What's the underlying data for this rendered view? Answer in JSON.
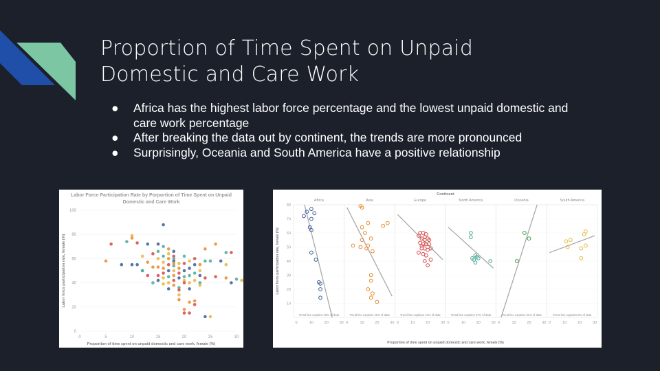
{
  "slide": {
    "title_line1": "Proportion of Time Spent on Unpaid",
    "title_line2": "Domestic and Care Work",
    "bullets": [
      "Africa has the highest labor force percentage and the lowest unpaid domestic and care work percentage",
      "After breaking the data out by continent, the trends are more pronounced",
      "Surprisingly, Oceania and South America have a positive relationship"
    ],
    "bullet_glyph": "●",
    "colors": {
      "background": "#1b202b",
      "accent_blue": "#1f4fa8",
      "accent_green": "#7cc6a4"
    }
  },
  "chart_data": [
    {
      "type": "scatter",
      "title": "Labor Force Participation Rate by Porportion of Time Spent on Unpaid Domestic and Care Work",
      "title_line1": "Labor Force Participation Rate by Porportion of Time Spent on Unpaid",
      "title_line2": "Domestic and Care Work",
      "xlabel": "Proportion of time spent on unpaid domestic and care work, female (%)",
      "ylabel": "Labor force participation rate, female (%)",
      "xlim": [
        0,
        30
      ],
      "ylim": [
        0,
        100
      ],
      "x_ticks": [
        "0",
        "5",
        "10",
        "15",
        "20",
        "25",
        "30"
      ],
      "y_ticks": [
        "0",
        "20",
        "40",
        "60",
        "80",
        "100"
      ],
      "colors": [
        "#e8892c",
        "#d94545",
        "#3c5a9a",
        "#4aa89a",
        "#e8b53a"
      ],
      "points": [
        [
          5,
          58
        ],
        [
          6,
          72
        ],
        [
          8,
          55
        ],
        [
          9,
          74
        ],
        [
          10,
          79
        ],
        [
          10,
          77
        ],
        [
          11,
          73
        ],
        [
          10,
          55
        ],
        [
          12,
          50
        ],
        [
          12,
          62
        ],
        [
          13,
          57
        ],
        [
          14,
          64
        ],
        [
          13,
          72
        ],
        [
          15,
          66
        ],
        [
          15,
          60
        ],
        [
          15,
          53
        ],
        [
          15,
          46
        ],
        [
          15,
          42
        ],
        [
          16,
          62
        ],
        [
          16,
          57
        ],
        [
          16,
          52
        ],
        [
          16,
          48
        ],
        [
          16,
          88
        ],
        [
          16,
          70
        ],
        [
          17,
          64
        ],
        [
          17,
          60
        ],
        [
          17,
          55
        ],
        [
          17,
          50
        ],
        [
          17,
          45
        ],
        [
          17,
          40
        ],
        [
          17,
          68
        ],
        [
          18,
          62
        ],
        [
          18,
          58
        ],
        [
          18,
          54
        ],
        [
          18,
          50
        ],
        [
          18,
          46
        ],
        [
          18,
          42
        ],
        [
          18,
          66
        ],
        [
          18,
          60
        ],
        [
          19,
          56
        ],
        [
          19,
          52
        ],
        [
          19,
          48
        ],
        [
          19,
          44
        ],
        [
          19,
          36
        ],
        [
          19,
          30
        ],
        [
          19,
          26
        ],
        [
          20,
          56
        ],
        [
          20,
          50
        ],
        [
          20,
          45
        ],
        [
          20,
          42
        ],
        [
          20,
          18
        ],
        [
          20,
          15
        ],
        [
          21,
          52
        ],
        [
          21,
          46
        ],
        [
          21,
          40
        ],
        [
          21,
          24
        ],
        [
          21,
          15
        ],
        [
          22,
          55
        ],
        [
          22,
          48
        ],
        [
          22,
          42
        ],
        [
          22,
          25
        ],
        [
          22,
          22
        ],
        [
          23,
          46
        ],
        [
          23,
          40
        ],
        [
          23,
          50
        ],
        [
          24,
          68
        ],
        [
          24,
          44
        ],
        [
          24,
          12
        ],
        [
          25,
          58
        ],
        [
          25,
          12
        ],
        [
          26,
          72
        ],
        [
          26,
          45
        ],
        [
          27,
          58
        ],
        [
          28,
          65
        ],
        [
          28,
          55
        ],
        [
          28,
          44
        ],
        [
          29,
          65
        ],
        [
          29,
          40
        ],
        [
          30,
          43
        ],
        [
          31,
          42
        ],
        [
          14,
          53
        ],
        [
          13,
          46
        ],
        [
          15,
          72
        ],
        [
          12,
          50
        ],
        [
          16,
          39
        ],
        [
          18,
          38
        ],
        [
          19,
          34
        ],
        [
          17,
          35
        ],
        [
          20,
          62
        ],
        [
          21,
          58
        ],
        [
          23,
          55
        ],
        [
          22,
          60
        ],
        [
          11,
          55
        ],
        [
          14,
          40
        ],
        [
          16,
          44
        ],
        [
          18,
          56
        ],
        [
          20,
          40
        ],
        [
          21,
          35
        ],
        [
          24,
          58
        ],
        [
          23,
          38
        ]
      ]
    },
    {
      "type": "scatter",
      "title": "Continent",
      "xlabel": "Proportion of time spent on unpaid domestic and care work, female (%)",
      "ylabel": "Labor force participation rate, female (%)",
      "xlim": [
        0,
        30
      ],
      "ylim": [
        0,
        80
      ],
      "x_ticks": [
        "0",
        "10",
        "20",
        "30"
      ],
      "y_ticks": [
        "10",
        "20",
        "30",
        "40",
        "50",
        "60",
        "70",
        "80"
      ],
      "panels": [
        {
          "name": "Africa",
          "color": "#3c5a9a",
          "trend": "Trend line explains 49% of data",
          "points": [
            [
              5,
              72
            ],
            [
              7,
              75
            ],
            [
              10,
              77
            ],
            [
              12,
              74
            ],
            [
              10,
              70
            ],
            [
              9,
              64
            ],
            [
              10,
              62
            ],
            [
              10,
              46
            ],
            [
              13,
              41
            ],
            [
              15,
              25
            ],
            [
              16,
              24
            ],
            [
              16,
              20
            ],
            [
              16,
              14
            ]
          ],
          "line": [
            [
              5,
              82
            ],
            [
              25,
              -5
            ]
          ]
        },
        {
          "name": "Asia",
          "color": "#e8892c",
          "trend": "Trend line explains 22% of data",
          "points": [
            [
              9,
              79
            ],
            [
              10,
              78
            ],
            [
              4,
              51
            ],
            [
              9,
              50
            ],
            [
              10,
              64
            ],
            [
              14,
              67
            ],
            [
              12,
              60
            ],
            [
              10,
              55
            ],
            [
              14,
              51
            ],
            [
              16,
              56
            ],
            [
              17,
              47
            ],
            [
              13,
              49
            ],
            [
              24,
              65
            ],
            [
              27,
              67
            ],
            [
              16,
              30
            ],
            [
              16,
              26
            ],
            [
              14,
              20
            ],
            [
              17,
              17
            ],
            [
              16,
              14
            ],
            [
              20,
              11
            ]
          ],
          "line": [
            [
              0,
              78
            ],
            [
              30,
              15
            ]
          ]
        },
        {
          "name": "Europe",
          "color": "#d94545",
          "trend": "Trend line explains 13% of data",
          "points": [
            [
              14,
              58
            ],
            [
              15,
              60
            ],
            [
              17,
              60
            ],
            [
              19,
              59
            ],
            [
              16,
              56
            ],
            [
              18,
              55
            ],
            [
              20,
              56
            ],
            [
              15,
              53
            ],
            [
              17,
              52
            ],
            [
              19,
              52
            ],
            [
              21,
              52
            ],
            [
              16,
              49
            ],
            [
              18,
              49
            ],
            [
              20,
              48
            ],
            [
              22,
              49
            ],
            [
              17,
              45
            ],
            [
              19,
              44
            ],
            [
              14,
              46
            ],
            [
              18,
              40
            ],
            [
              20,
              37
            ],
            [
              22,
              41
            ],
            [
              16,
              51
            ],
            [
              21,
              55
            ],
            [
              18,
              57
            ]
          ],
          "line": [
            [
              0,
              73
            ],
            [
              30,
              41
            ]
          ]
        },
        {
          "name": "North America",
          "color": "#4aa89a",
          "trend": "Trend line explains 27% of data",
          "points": [
            [
              15,
              60
            ],
            [
              15,
              57
            ],
            [
              18,
              44
            ],
            [
              17,
              41
            ],
            [
              16,
              42
            ],
            [
              19,
              43
            ],
            [
              20,
              42
            ],
            [
              18,
              39
            ],
            [
              28,
              40
            ]
          ],
          "line": [
            [
              0,
              64
            ],
            [
              30,
              35
            ]
          ]
        },
        {
          "name": "Oceania",
          "color": "#3a9a3a",
          "trend": "Trend line explains 61% of data",
          "points": [
            [
              17,
              60
            ],
            [
              20,
              56
            ],
            [
              12,
              40
            ]
          ],
          "line": [
            [
              0,
              -5
            ],
            [
              26,
              82
            ]
          ]
        },
        {
          "name": "South America",
          "color": "#e8b53a",
          "trend": "Trend line explains 8% of data",
          "points": [
            [
              11,
              54
            ],
            [
              14,
              55
            ],
            [
              12,
              50
            ],
            [
              21,
              49
            ],
            [
              24,
              51
            ],
            [
              23,
              59
            ],
            [
              24,
              61
            ],
            [
              21,
              42
            ]
          ],
          "line": [
            [
              0,
              46
            ],
            [
              30,
              58
            ]
          ]
        }
      ]
    }
  ]
}
